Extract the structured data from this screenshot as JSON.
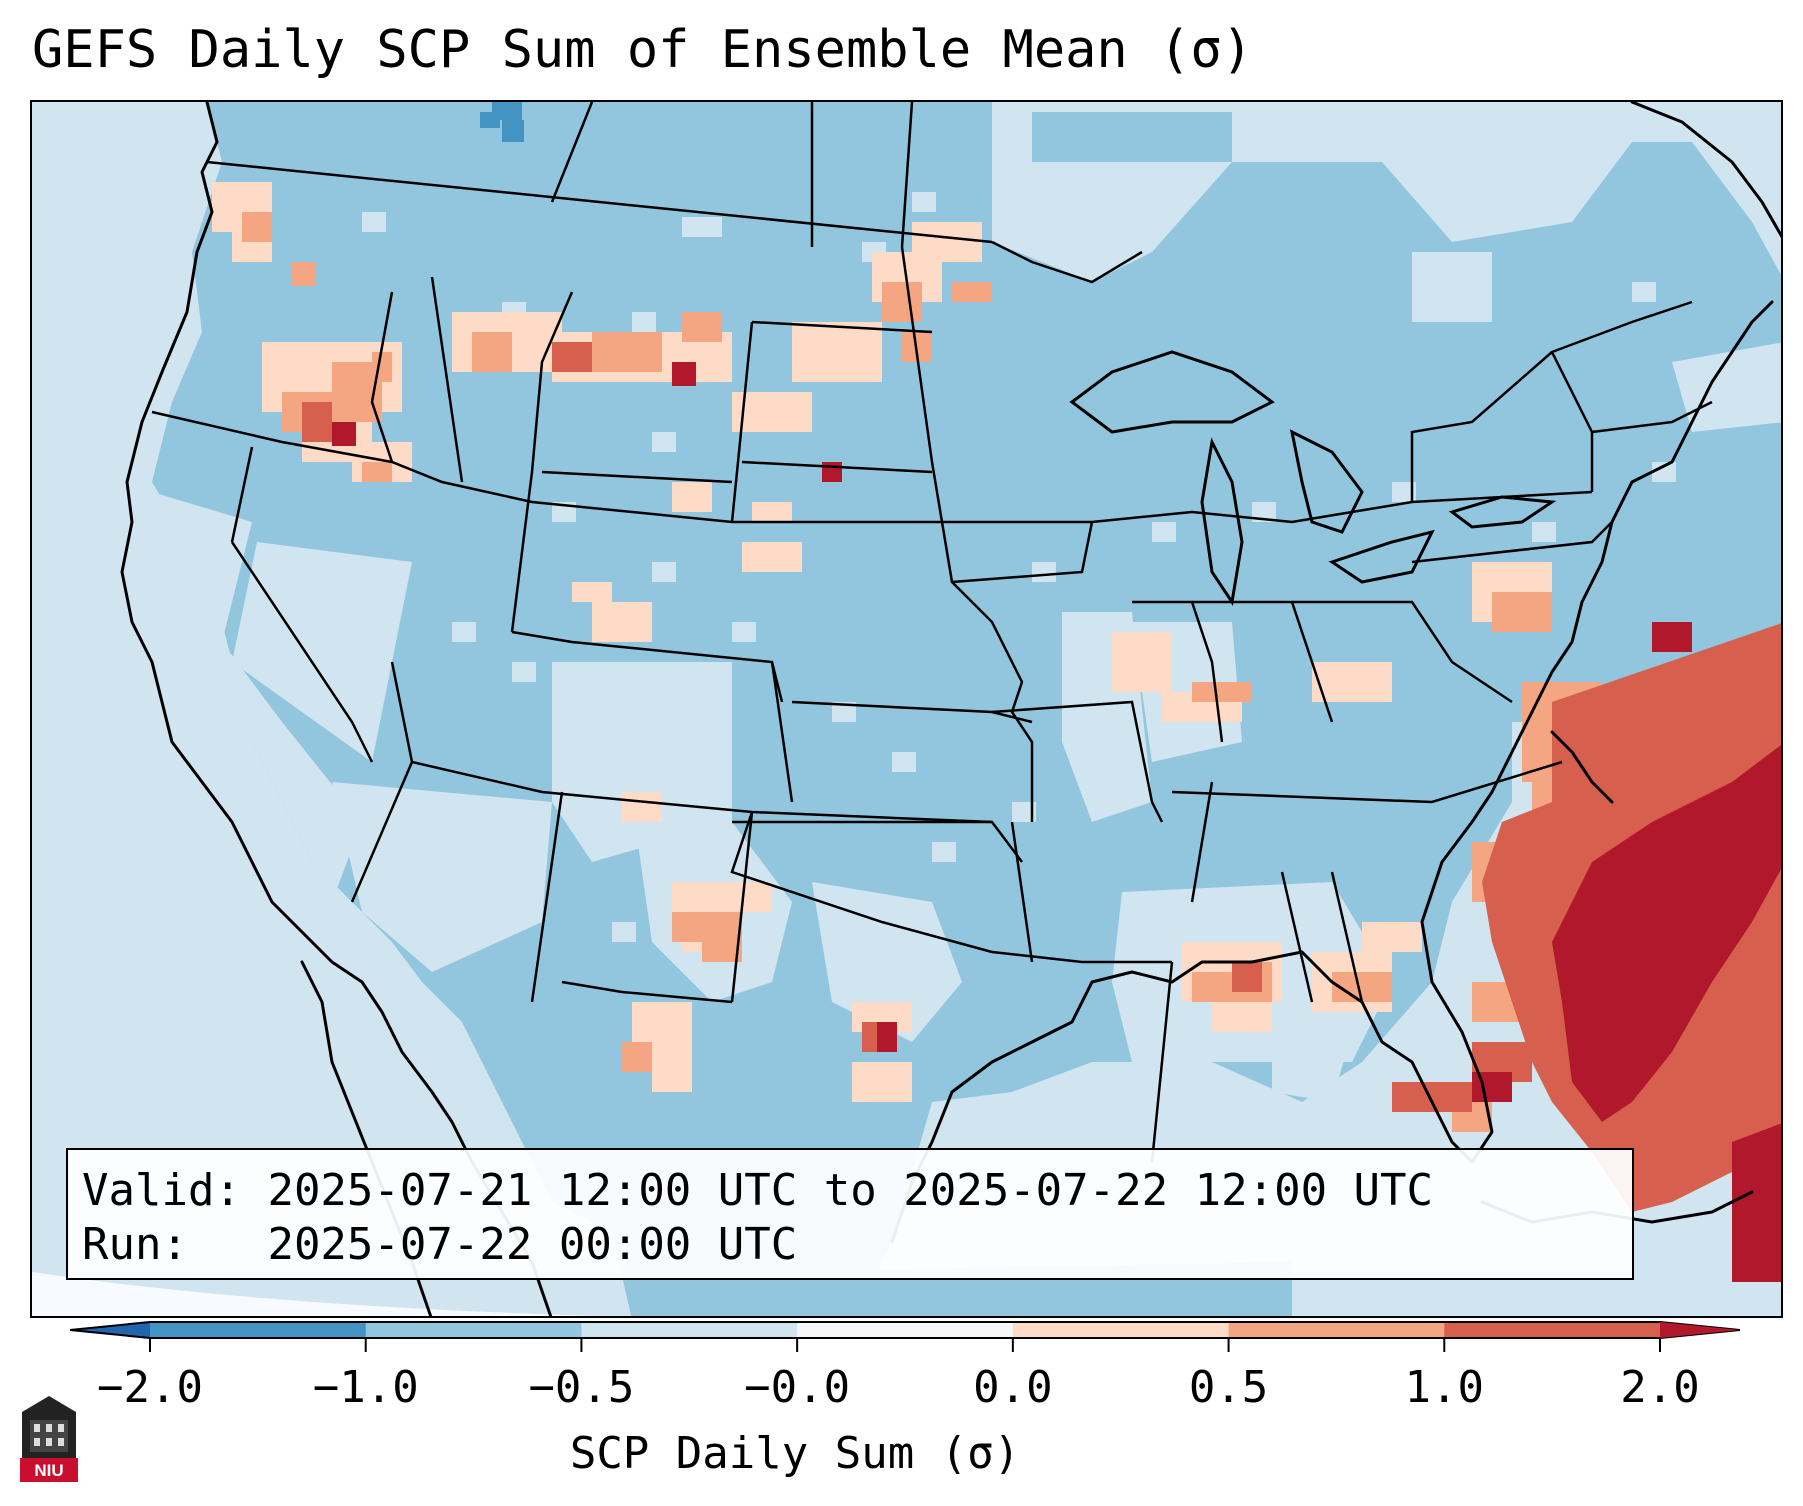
{
  "title": "GEFS Daily SCP Sum of Ensemble Mean (σ)",
  "info": {
    "valid_label": "Valid:",
    "valid_value": "2025-07-21 12:00 UTC to 2025-07-22 12:00 UTC",
    "run_label": "Run:",
    "run_value": "2025-07-22 00:00 UTC"
  },
  "colorbar": {
    "label": "SCP Daily Sum (σ)",
    "ticks": [
      "−2.0",
      "−1.0",
      "−0.5",
      "−0.0",
      "0.0",
      "0.5",
      "1.0",
      "2.0"
    ],
    "bins": [
      {
        "color": "#4393c3"
      },
      {
        "color": "#92c5de"
      },
      {
        "color": "#d1e5f0"
      },
      {
        "color": "#f7f7f7"
      },
      {
        "color": "#fddbc7"
      },
      {
        "color": "#f4a582"
      },
      {
        "color": "#d6604d"
      }
    ],
    "under_color": "#2166ac",
    "over_color": "#b2182b"
  },
  "logo": {
    "text": "NIU"
  }
}
